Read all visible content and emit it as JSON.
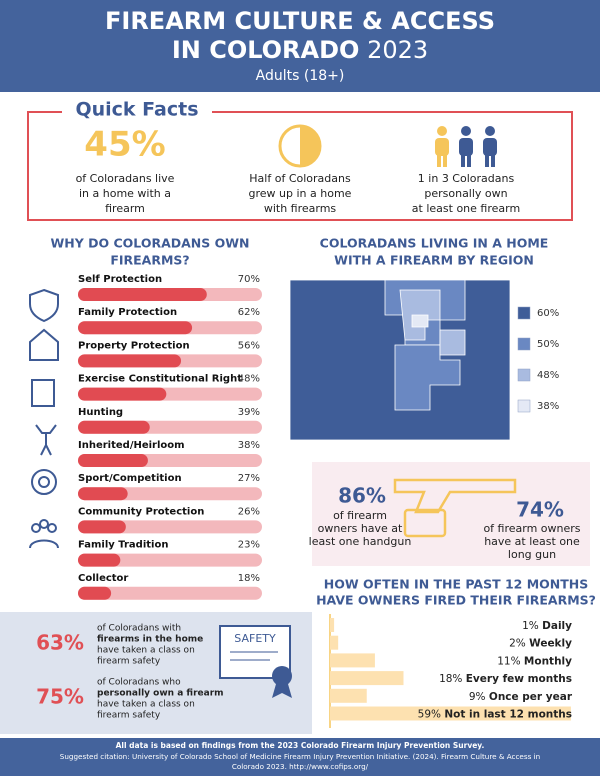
{
  "header": {
    "title_line1": "FIREARM CULTURE & ACCESS",
    "title_line2": "IN COLORADO",
    "year": "2023",
    "subtitle": "Adults (18+)"
  },
  "quick_facts": {
    "title": "Quick Facts",
    "items": [
      {
        "stat": "45%",
        "text": [
          "of Coloradans live",
          "in a home with a",
          "firearm"
        ]
      },
      {
        "text": [
          "Half of Coloradans",
          "grew up in a home",
          "with firearms"
        ]
      },
      {
        "text": [
          "1 in 3 Coloradans",
          "personally own",
          "at least one firearm"
        ]
      }
    ]
  },
  "reasons_chart": {
    "type": "bar",
    "title": [
      "WHY DO COLORADANS OWN",
      "FIREARMS?"
    ],
    "categories": [
      "Self Protection",
      "Family Protection",
      "Property Protection",
      "Exercise Constitutional Right",
      "Hunting",
      "Inherited/Heirloom",
      "Sport/Competition",
      "Community Protection",
      "Family Tradition",
      "Collector"
    ],
    "values": [
      70,
      62,
      56,
      48,
      39,
      38,
      27,
      26,
      23,
      18
    ],
    "value_labels": [
      "70%",
      "62%",
      "56%",
      "48%",
      "39%",
      "38%",
      "27%",
      "26%",
      "23%",
      "18%"
    ],
    "xlim": [
      0,
      100
    ],
    "color": "#e14b52",
    "track_color": "#f3b8bc"
  },
  "region_map": {
    "title": [
      "COLORADANS LIVING IN A HOME",
      "WITH A FIREARM BY REGION"
    ],
    "legend": [
      {
        "label": "60%",
        "color": "#3f5d98"
      },
      {
        "label": "50%",
        "color": "#6a88c2"
      },
      {
        "label": "48%",
        "color": "#a9bbe0"
      },
      {
        "label": "38%",
        "color": "#e4e9f5"
      }
    ]
  },
  "gun_types": [
    {
      "stat": "86%",
      "text": [
        "of firearm",
        "owners have at",
        "least one handgun"
      ]
    },
    {
      "stat": "74%",
      "text": [
        "of firearm owners",
        "have at least one",
        "long gun"
      ]
    }
  ],
  "fire_frequency_chart": {
    "type": "bar",
    "title": [
      "HOW OFTEN IN THE PAST 12 MONTHS",
      "HAVE OWNERS FIRED THEIR FIREARMS?"
    ],
    "categories": [
      "Daily",
      "Weekly",
      "Monthly",
      "Every few months",
      "Once per year",
      "Not in last 12 months"
    ],
    "values": [
      1,
      2,
      11,
      18,
      9,
      59
    ],
    "value_labels": [
      "1%",
      "2%",
      "11%",
      "18%",
      "9%",
      "59%"
    ],
    "xlim": [
      0,
      60
    ],
    "color": "#fde1b0"
  },
  "safety": {
    "certificate": "SAFETY",
    "items": [
      {
        "stat": "63%",
        "lines": [
          "of Coloradans with",
          "firearms in the home",
          "have taken a class on",
          "firearm safety"
        ]
      },
      {
        "stat": "75%",
        "lines": [
          "of Coloradans who",
          "personally own a firearm",
          "have taken a class on",
          "firearm safety"
        ]
      }
    ]
  },
  "footer": {
    "note": "All data is based on findings from the 2023 Colorado Firearm Injury Prevention Survey.",
    "citation": [
      "Suggested citation: University of Colorado School of Medicine Firearm Injury Prevention Initiative. (2024). Firearm Culture & Access in",
      "Colorado 2023. http://www.cofips.org/"
    ]
  }
}
